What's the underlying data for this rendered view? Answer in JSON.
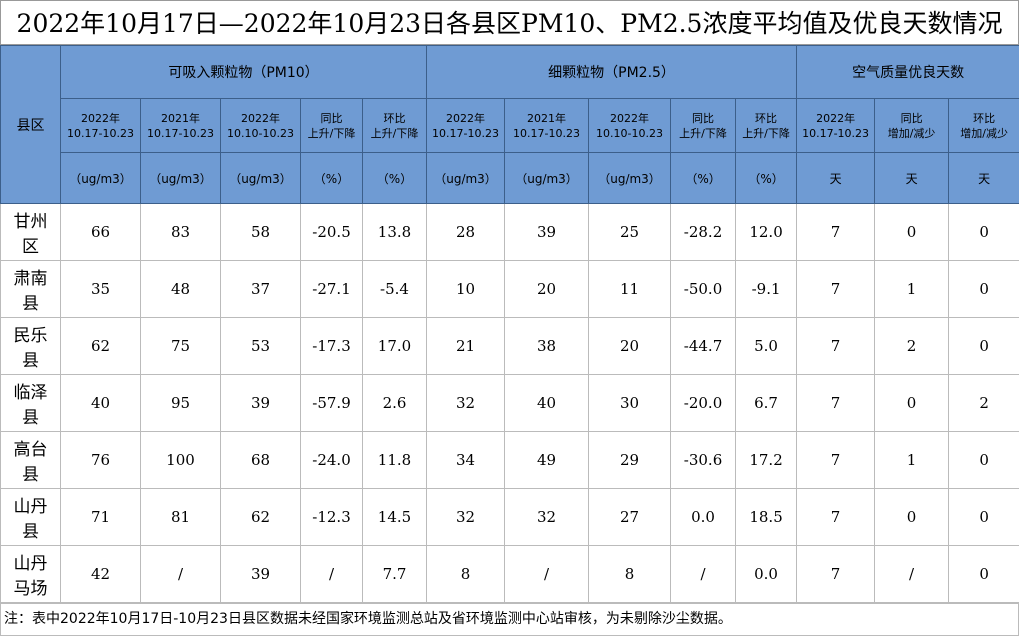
{
  "title": "2022年10月17日—2022年10月23日各县区PM10、PM2.5浓度平均值及优良天数情况",
  "header": {
    "county": "县区",
    "groups": [
      "可吸入颗粒物（PM10）",
      "细颗粒物（PM2.5）",
      "空气质量优良天数"
    ],
    "columns": [
      [
        "2022年",
        "10.17-10.23"
      ],
      [
        "2021年",
        "10.17-10.23"
      ],
      [
        "2022年",
        "10.10-10.23"
      ],
      [
        "同比",
        "上升/下降"
      ],
      [
        "环比",
        "上升/下降"
      ],
      [
        "2022年",
        "10.17-10.23"
      ],
      [
        "2021年",
        "10.17-10.23"
      ],
      [
        "2022年",
        "10.10-10.23"
      ],
      [
        "同比",
        "上升/下降"
      ],
      [
        "环比",
        "上升/下降"
      ],
      [
        "2022年",
        "10.17-10.23"
      ],
      [
        "同比",
        "增加/减少"
      ],
      [
        "环比",
        "增加/减少"
      ]
    ],
    "units": [
      "（ug/m3）",
      "（ug/m3）",
      "（ug/m3）",
      "（%）",
      "（%）",
      "（ug/m3）",
      "（ug/m3）",
      "（ug/m3）",
      "（%）",
      "（%）",
      "天",
      "天",
      "天"
    ]
  },
  "table": {
    "rows": [
      [
        "甘州区",
        "66",
        "83",
        "58",
        "-20.5",
        "13.8",
        "28",
        "39",
        "25",
        "-28.2",
        "12.0",
        "7",
        "0",
        "0"
      ],
      [
        "肃南县",
        "35",
        "48",
        "37",
        "-27.1",
        "-5.4",
        "10",
        "20",
        "11",
        "-50.0",
        "-9.1",
        "7",
        "1",
        "0"
      ],
      [
        "民乐县",
        "62",
        "75",
        "53",
        "-17.3",
        "17.0",
        "21",
        "38",
        "20",
        "-44.7",
        "5.0",
        "7",
        "2",
        "0"
      ],
      [
        "临泽县",
        "40",
        "95",
        "39",
        "-57.9",
        "2.6",
        "32",
        "40",
        "30",
        "-20.0",
        "6.7",
        "7",
        "0",
        "2"
      ],
      [
        "高台县",
        "76",
        "100",
        "68",
        "-24.0",
        "11.8",
        "34",
        "49",
        "29",
        "-30.6",
        "17.2",
        "7",
        "1",
        "0"
      ],
      [
        "山丹县",
        "71",
        "81",
        "62",
        "-12.3",
        "14.5",
        "32",
        "32",
        "27",
        "0.0",
        "18.5",
        "7",
        "0",
        "0"
      ],
      [
        "山丹马场",
        "42",
        "/",
        "39",
        "/",
        "7.7",
        "8",
        "/",
        "8",
        "/",
        "0.0",
        "7",
        "/",
        "0"
      ]
    ]
  },
  "note": "注：表中2022年10月17日-10月23日县区数据未经国家环境监测总站及省环境监测中心站审核，为未剔除沙尘数据。"
}
